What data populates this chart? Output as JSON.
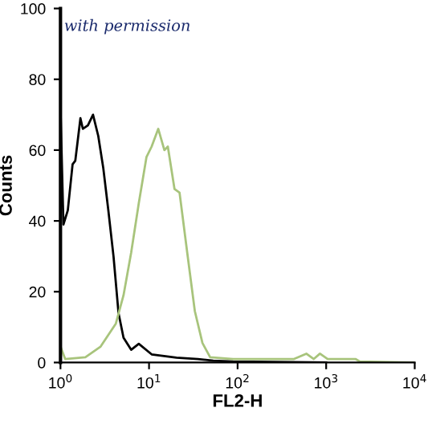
{
  "chart_data": {
    "type": "line",
    "xlabel": "FL2-H",
    "ylabel": "Counts",
    "log": "x",
    "xlim": [
      1,
      10000
    ],
    "ylim": [
      0,
      100
    ],
    "xticks": [
      {
        "value": 1,
        "label": "10$^{0}$"
      },
      {
        "value": 10,
        "label": "10$^{1}$"
      },
      {
        "value": 100,
        "label": "10$^{2}$"
      },
      {
        "value": 1000,
        "label": "10$^{3}$"
      },
      {
        "value": 10000,
        "label": "10$^{4}$"
      }
    ],
    "yticks": [
      0,
      20,
      40,
      60,
      80,
      100
    ],
    "grid": false,
    "annotations": [
      "with permission"
    ],
    "series": [
      {
        "color": "#000000",
        "x": [
          1,
          1,
          1.08,
          1.21,
          1.37,
          1.47,
          1.68,
          1.79,
          2.04,
          2.33,
          2.67,
          3.04,
          3.47,
          3.97,
          4.52,
          5.15,
          6.28,
          7.66,
          10.7,
          20.4,
          35.6,
          53,
          88.8,
          1000
        ],
        "values": [
          0,
          72,
          39,
          43,
          56,
          57,
          69,
          66,
          67,
          70,
          64,
          55,
          43,
          30,
          14,
          7,
          3.6,
          5.3,
          2.3,
          1.4,
          1,
          0.5,
          0.3,
          0
        ]
      },
      {
        "color": "#a8c47c",
        "x": [
          1,
          1.13,
          1.91,
          2.84,
          4.22,
          5.15,
          6.28,
          7.66,
          9.35,
          10.7,
          12.7,
          14.9,
          16.3,
          19.4,
          22.1,
          27,
          32.9,
          40.1,
          49,
          88.8,
          434,
          597,
          725,
          851,
          1040,
          2140,
          2400,
          10000
        ],
        "values": [
          4.5,
          1,
          1.5,
          4.5,
          11,
          19,
          31,
          45,
          58,
          61,
          66,
          60,
          61,
          49,
          48,
          31,
          14.5,
          5.5,
          1.5,
          1,
          1,
          2.5,
          1,
          2.5,
          1,
          1,
          0.3,
          0
        ]
      }
    ]
  }
}
